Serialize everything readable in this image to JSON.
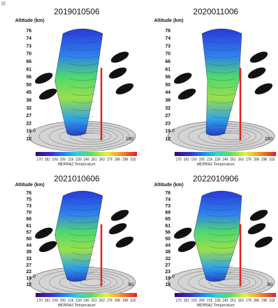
{
  "panels": [
    {
      "title": "2019010506",
      "axis_label": "Altitude (km)",
      "altitudes": [
        76,
        74,
        73,
        70,
        66,
        61,
        56,
        50,
        45,
        38,
        32,
        27,
        22,
        19,
        12
      ],
      "map_labels": [
        "0",
        "180"
      ],
      "colorbar_ticks": [
        170,
        181,
        193,
        205,
        216,
        228,
        240,
        251,
        263,
        275,
        286,
        298,
        310
      ],
      "colorbar_label": "MERRA2 Temperature"
    },
    {
      "title": "2020011006",
      "axis_label": "Altitude (km)",
      "altitudes": [
        76,
        74,
        73,
        70,
        66,
        61,
        56,
        50,
        44,
        38,
        32,
        27,
        23,
        19,
        12
      ],
      "map_labels": [
        "0",
        "180"
      ],
      "colorbar_ticks": [
        170,
        181,
        193,
        205,
        216,
        228,
        240,
        251,
        263,
        275,
        286,
        298,
        310
      ],
      "colorbar_label": "MERRA2 Temperature"
    },
    {
      "title": "2021010606",
      "axis_label": "Altitude (km)",
      "altitudes": [
        76,
        75,
        73,
        70,
        66,
        61,
        57,
        50,
        44,
        38,
        32,
        27,
        22,
        19,
        12
      ],
      "map_labels": [
        "0",
        "90"
      ],
      "colorbar_ticks": [
        170,
        181,
        193,
        205,
        216,
        228,
        240,
        251,
        263,
        275,
        286,
        298,
        310
      ],
      "colorbar_label": "MERRA2 Temperature"
    },
    {
      "title": "2022010906",
      "axis_label": "Altitude (km)",
      "altitudes": [
        76,
        74,
        73,
        69,
        65,
        61,
        56,
        50,
        44,
        38,
        32,
        27,
        23,
        19,
        13
      ],
      "map_labels": [
        "0",
        "90"
      ],
      "colorbar_ticks": [
        170,
        181,
        193,
        205,
        216,
        228,
        240,
        251,
        263,
        275,
        286,
        298,
        310
      ],
      "colorbar_label": "MERRA2 Temperature"
    }
  ]
}
